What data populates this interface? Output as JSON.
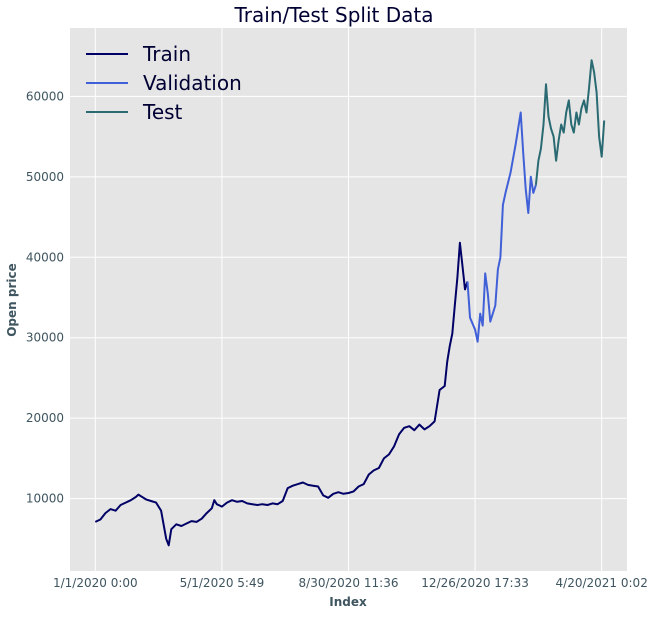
{
  "chart_data": {
    "type": "line",
    "title": "Train/Test Split Data",
    "xlabel": "Index",
    "ylabel": "Open price",
    "x_ticks": [
      "1/1/2020 0:00",
      "5/1/2020 5:49",
      "8/30/2020 11:36",
      "12/26/2020 17:33",
      "4/20/2021 0:02"
    ],
    "y_ticks": [
      10000,
      20000,
      30000,
      40000,
      50000,
      60000
    ],
    "xlim": [
      -0.05,
      1.05
    ],
    "ylim": [
      1000,
      68500
    ],
    "grid": true,
    "legend_position": "top-left",
    "series": [
      {
        "name": "Train",
        "color": "#000066",
        "points": [
          [
            0.0,
            7100
          ],
          [
            0.01,
            7400
          ],
          [
            0.02,
            8200
          ],
          [
            0.03,
            8700
          ],
          [
            0.04,
            8500
          ],
          [
            0.05,
            9200
          ],
          [
            0.06,
            9500
          ],
          [
            0.07,
            9800
          ],
          [
            0.08,
            10200
          ],
          [
            0.085,
            10500
          ],
          [
            0.09,
            10300
          ],
          [
            0.1,
            9900
          ],
          [
            0.11,
            9700
          ],
          [
            0.12,
            9500
          ],
          [
            0.13,
            8500
          ],
          [
            0.14,
            5000
          ],
          [
            0.145,
            4200
          ],
          [
            0.15,
            6200
          ],
          [
            0.16,
            6800
          ],
          [
            0.17,
            6600
          ],
          [
            0.18,
            6900
          ],
          [
            0.19,
            7200
          ],
          [
            0.2,
            7100
          ],
          [
            0.21,
            7500
          ],
          [
            0.22,
            8200
          ],
          [
            0.23,
            8800
          ],
          [
            0.235,
            9800
          ],
          [
            0.24,
            9300
          ],
          [
            0.25,
            9000
          ],
          [
            0.26,
            9500
          ],
          [
            0.27,
            9800
          ],
          [
            0.28,
            9600
          ],
          [
            0.29,
            9700
          ],
          [
            0.3,
            9400
          ],
          [
            0.31,
            9300
          ],
          [
            0.32,
            9200
          ],
          [
            0.33,
            9300
          ],
          [
            0.34,
            9200
          ],
          [
            0.35,
            9400
          ],
          [
            0.36,
            9300
          ],
          [
            0.37,
            9700
          ],
          [
            0.38,
            11300
          ],
          [
            0.39,
            11600
          ],
          [
            0.4,
            11800
          ],
          [
            0.41,
            12000
          ],
          [
            0.42,
            11700
          ],
          [
            0.43,
            11600
          ],
          [
            0.44,
            11500
          ],
          [
            0.45,
            10400
          ],
          [
            0.46,
            10100
          ],
          [
            0.47,
            10600
          ],
          [
            0.48,
            10800
          ],
          [
            0.49,
            10600
          ],
          [
            0.5,
            10700
          ],
          [
            0.51,
            10900
          ],
          [
            0.52,
            11500
          ],
          [
            0.53,
            11800
          ],
          [
            0.54,
            13000
          ],
          [
            0.55,
            13500
          ],
          [
            0.56,
            13800
          ],
          [
            0.57,
            15000
          ],
          [
            0.58,
            15500
          ],
          [
            0.59,
            16500
          ],
          [
            0.6,
            18000
          ],
          [
            0.61,
            18800
          ],
          [
            0.62,
            19000
          ],
          [
            0.63,
            18500
          ],
          [
            0.64,
            19200
          ],
          [
            0.65,
            18600
          ],
          [
            0.66,
            19000
          ],
          [
            0.67,
            19600
          ],
          [
            0.68,
            23500
          ],
          [
            0.69,
            24000
          ],
          [
            0.695,
            27000
          ],
          [
            0.7,
            29000
          ],
          [
            0.705,
            30500
          ],
          [
            0.71,
            34000
          ],
          [
            0.715,
            37500
          ],
          [
            0.72,
            41800
          ],
          [
            0.725,
            39000
          ],
          [
            0.73,
            36000
          ],
          [
            0.735,
            37000
          ]
        ]
      },
      {
        "name": "Validation",
        "color": "#4060d8",
        "points": [
          [
            0.735,
            37000
          ],
          [
            0.74,
            32500
          ],
          [
            0.75,
            31000
          ],
          [
            0.755,
            29500
          ],
          [
            0.76,
            33000
          ],
          [
            0.765,
            31500
          ],
          [
            0.77,
            38000
          ],
          [
            0.775,
            35500
          ],
          [
            0.78,
            32000
          ],
          [
            0.79,
            34000
          ],
          [
            0.795,
            38500
          ],
          [
            0.8,
            40000
          ],
          [
            0.805,
            46500
          ],
          [
            0.81,
            48000
          ],
          [
            0.82,
            50500
          ],
          [
            0.83,
            54000
          ],
          [
            0.84,
            58000
          ],
          [
            0.845,
            53000
          ],
          [
            0.85,
            48500
          ],
          [
            0.855,
            45500
          ],
          [
            0.86,
            50000
          ],
          [
            0.865,
            48000
          ],
          [
            0.87,
            49000
          ]
        ]
      },
      {
        "name": "Test",
        "color": "#2a6a72",
        "points": [
          [
            0.87,
            49000
          ],
          [
            0.875,
            52000
          ],
          [
            0.88,
            53500
          ],
          [
            0.885,
            56500
          ],
          [
            0.89,
            61500
          ],
          [
            0.895,
            57500
          ],
          [
            0.9,
            56000
          ],
          [
            0.905,
            55000
          ],
          [
            0.91,
            52000
          ],
          [
            0.915,
            54500
          ],
          [
            0.92,
            56500
          ],
          [
            0.925,
            55500
          ],
          [
            0.93,
            58000
          ],
          [
            0.935,
            59500
          ],
          [
            0.94,
            56500
          ],
          [
            0.945,
            55500
          ],
          [
            0.95,
            58000
          ],
          [
            0.955,
            56500
          ],
          [
            0.96,
            58500
          ],
          [
            0.965,
            59500
          ],
          [
            0.97,
            58000
          ],
          [
            0.975,
            61000
          ],
          [
            0.98,
            64500
          ],
          [
            0.985,
            63000
          ],
          [
            0.99,
            60500
          ],
          [
            0.995,
            55000
          ],
          [
            1.0,
            52500
          ],
          [
            1.005,
            57000
          ]
        ]
      }
    ]
  }
}
